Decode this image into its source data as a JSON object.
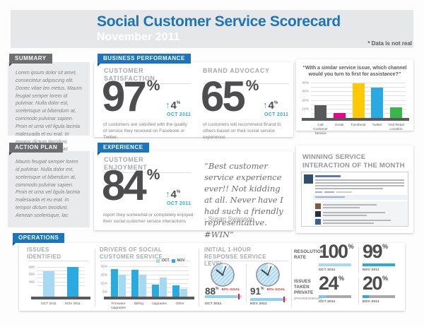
{
  "page": {
    "title": "Social Customer Service Scorecard",
    "subtitle": "November 2011",
    "disclaimer": "* Data is not real"
  },
  "icons": {
    "up_arrow": "↑"
  },
  "colors": {
    "accent_blue": "#1c75bc",
    "light_blue": "#29abe2",
    "pale_blue": "#a6d9f4",
    "dark_gray": "#4d4d4f",
    "red": "#ed1c24",
    "yellow": "#ffc907",
    "magenta": "#ec008c",
    "green": "#3cb54a",
    "bar_gray": "#58595b"
  },
  "summary": {
    "label": "SUMMARY",
    "text": "Lorem ipsum dolor sit amet, consectetur adipiscing elit. Donec vitae leo metus. Mauris feugiat semper lorem id pulvinar. Nulla dolor est, scelerisque ut bibendum at, commodo pulvinar sapien. Proin et urna vel ligula lacinia malesuada et eu erat. In tempor dictum tincidunt. Aenean scelerisque, lac"
  },
  "action_plan": {
    "label": "ACTION PLAN",
    "text": "Mauris feugiat semper lorem id pulvinar. Nulla dolor est, scelerisque ut bibendum at, commodo pulvinar sapien. Proin et urna vel ligula lacinia malesuada et eu erat. In tempor dictum tincidunt. Aenean scelerisque, lac"
  },
  "business_performance": {
    "label": "BUSINESS PERFORMANCE",
    "customer_satisfaction": {
      "title": "CUSTOMER SATISFACTION",
      "value": "97",
      "unit": "%",
      "delta": "4",
      "delta_unit": "%",
      "period": "OCT 2011",
      "description": "of customers are satisfied with the quality of service they received on Facebook or Twitter."
    },
    "brand_advocacy": {
      "title": "BRAND ADVOCACY",
      "value": "65",
      "unit": "%",
      "delta": "4",
      "delta_unit": "%",
      "period": "OCT 2011",
      "description": "of customers will recommend Brand to others based on their social service experience"
    }
  },
  "experience": {
    "label": "EXPERIENCE",
    "customer_enjoyment": {
      "title": "CUSTOMER ENJOYMENT",
      "value": "84",
      "unit": "%",
      "delta": "4",
      "delta_unit": "%",
      "period": "OCT 2011",
      "description": "report they somewhat or completely enjoyed their social customer service interactions"
    },
    "quote": {
      "text": "“Best customer service experience ever!! Not kidding at all. Never have I had such a friendly representative. #WIN”",
      "attribution": "- Susan Swanson"
    },
    "winning": {
      "title": "WINNING SERVICE INTERACTION OF THE MONTH"
    }
  },
  "operations": {
    "label": "OPERATIONS",
    "issues_identified": {
      "title": "ISSUES IDENTIFIED"
    },
    "drivers": {
      "title": "DRIVERS OF SOCIAL CUSTOMER SERVICE",
      "legend": [
        {
          "label": "OCT"
        },
        {
          "label": "NOV"
        }
      ]
    },
    "response": {
      "title": "INITIAL 1-HOUR RESPONSE SERVICE LEVEL",
      "items": [
        {
          "value": "88",
          "unit": "%",
          "goal": "90% GOAL",
          "period": "OCT 2011",
          "fill": 88,
          "goal_pos": 90
        },
        {
          "value": "91",
          "unit": "%",
          "goal": "90% GOAL",
          "period": "NOV 2011",
          "fill": 91,
          "goal_pos": 90
        }
      ]
    },
    "resolution": {
      "title": "RESOLUTION RATE",
      "items": [
        {
          "value": "100",
          "unit": "%",
          "period": "OCT 2011",
          "fill": 100
        },
        {
          "value": "99",
          "unit": "%",
          "period": "NOV 2011",
          "fill": 99
        }
      ]
    },
    "private": {
      "title": "ISSUES TAKEN PRIVATE",
      "subtitle": "(PHONE/EMAIL)",
      "items": [
        {
          "value": "24",
          "unit": "%",
          "period": "OCT 2011",
          "fill": 24
        },
        {
          "value": "20",
          "unit": "%",
          "period": "NOV 2011",
          "fill": 20
        }
      ]
    }
  },
  "chart_data": [
    {
      "id": "channel_preference",
      "type": "bar",
      "title": "“With a similar service issue, which channel would you turn to first for assistance?”",
      "categories": [
        "Call Customer Service",
        "Email",
        "Facebook",
        "Twitter",
        "Visit Retail Location"
      ],
      "values": [
        15,
        6,
        40,
        35,
        12
      ],
      "colors": [
        "#58595b",
        "#ec008c",
        "#ffc907",
        "#29abe2",
        "#3cb54a"
      ],
      "ylim": [
        0,
        45
      ],
      "yticks": [
        10,
        20,
        30,
        40
      ],
      "ytick_suffix": "%",
      "gridlines": [
        5,
        10,
        15,
        20,
        25,
        30,
        35,
        40
      ],
      "grid": true,
      "legend_position": "none"
    },
    {
      "id": "issues_identified",
      "type": "bar",
      "title": "ISSUES IDENTIFIED",
      "categories": [
        "OCT 2011",
        "NOV 2011"
      ],
      "values": [
        700,
        830
      ],
      "colors": [
        "#a6d9f4",
        "#29abe2"
      ],
      "ylim": [
        0,
        900
      ],
      "yticks": [
        400,
        600,
        800
      ],
      "ytick_suffix": "",
      "gridlines": [
        300,
        400,
        500,
        600,
        700,
        800
      ],
      "grid": true
    },
    {
      "id": "drivers",
      "type": "bar",
      "title": "DRIVERS OF SOCIAL CUSTOMER SERVICE",
      "categories": [
        "Firmware Upgrades",
        "Billing",
        "Upgrades",
        "Other"
      ],
      "series": [
        {
          "name": "NOV",
          "color": "#29abe2",
          "values": [
            32,
            31,
            14,
            13
          ]
        },
        {
          "name": "OCT",
          "color": "#a6d9f4",
          "values": [
            26,
            26,
            22,
            9
          ]
        }
      ],
      "legend": [
        "OCT",
        "NOV"
      ],
      "legend_position": "top-right",
      "ylim": [
        0,
        38
      ],
      "yticks": [
        5,
        15,
        25,
        35
      ],
      "ytick_suffix": "%",
      "gridlines": [
        5,
        10,
        15,
        20,
        25,
        30,
        35
      ],
      "grid": true
    },
    {
      "id": "response_service_level",
      "type": "gauge",
      "title": "INITIAL 1-HOUR RESPONSE SERVICE LEVEL",
      "unit": "%",
      "series": [
        {
          "period": "OCT 2011",
          "value": 88,
          "goal": 90
        },
        {
          "period": "NOV 2011",
          "value": 91,
          "goal": 90
        }
      ]
    },
    {
      "id": "resolution_rate",
      "type": "kpi",
      "title": "RESOLUTION RATE",
      "unit": "%",
      "series": [
        {
          "period": "OCT 2011",
          "value": 100
        },
        {
          "period": "NOV 2011",
          "value": 99
        }
      ]
    },
    {
      "id": "issues_taken_private",
      "type": "kpi",
      "title": "ISSUES TAKEN PRIVATE (PHONE/EMAIL)",
      "unit": "%",
      "series": [
        {
          "period": "OCT 2011",
          "value": 24
        },
        {
          "period": "NOV 2011",
          "value": 20
        }
      ]
    },
    {
      "id": "customer_satisfaction",
      "type": "kpi",
      "value": 97,
      "unit": "%",
      "delta": 4,
      "period": "OCT 2011"
    },
    {
      "id": "brand_advocacy",
      "type": "kpi",
      "value": 65,
      "unit": "%",
      "delta": 4,
      "period": "OCT 2011"
    },
    {
      "id": "customer_enjoyment",
      "type": "kpi",
      "value": 84,
      "unit": "%",
      "delta": 4,
      "period": "OCT 2011"
    }
  ]
}
